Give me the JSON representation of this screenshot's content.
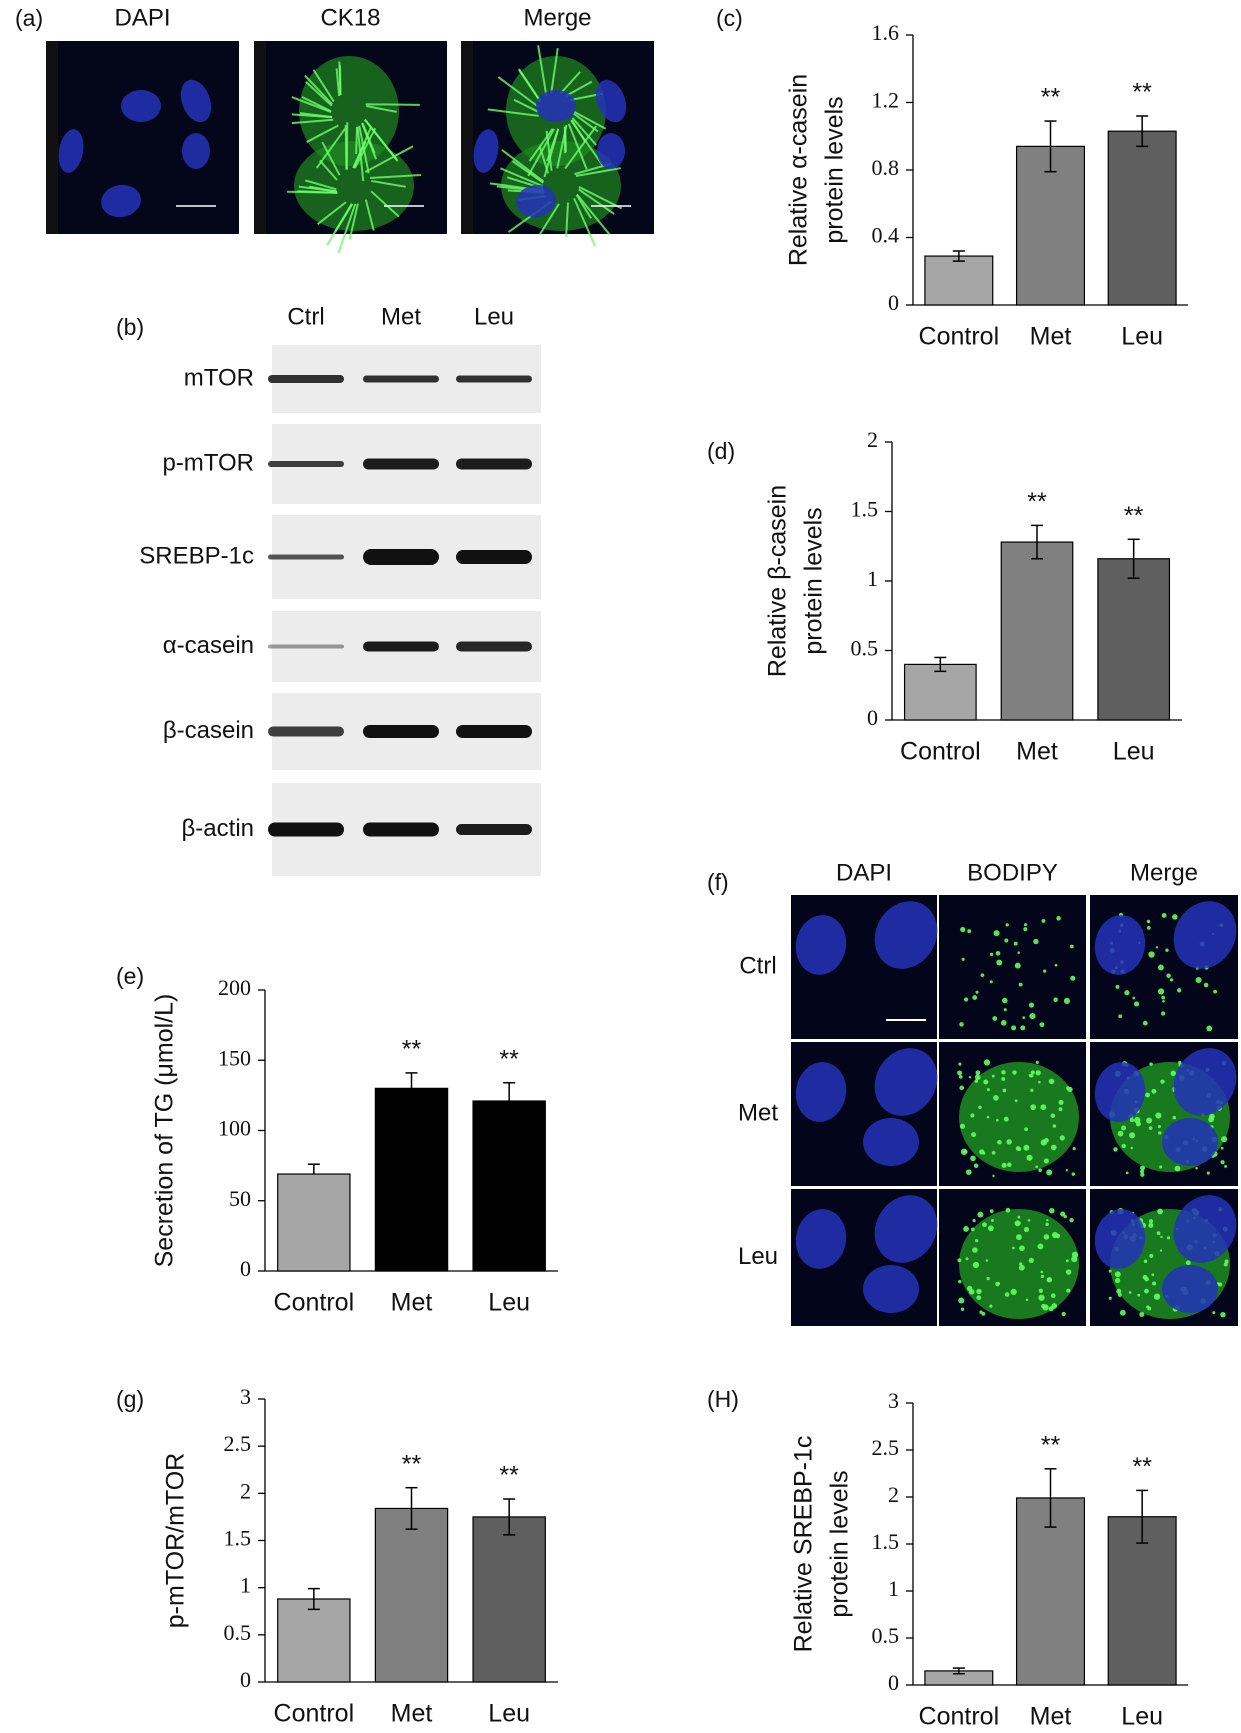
{
  "panel_labels": [
    "(a)",
    "(b)",
    "(c)",
    "(d)",
    "(e)",
    "(f)",
    "(g)",
    "(H)"
  ],
  "micrographs_a": {
    "columns": [
      "DAPI",
      "CK18",
      "Merge"
    ]
  },
  "blot": {
    "lanes": [
      "Ctrl",
      "Met",
      "Leu"
    ],
    "proteins": [
      "mTOR",
      "p-mTOR",
      "SREBP-1c",
      "α-casein",
      "β-casein",
      "β-actin"
    ]
  },
  "micrographs_f": {
    "columns": [
      "DAPI",
      "BODIPY",
      "Merge"
    ],
    "rows": [
      "Ctrl",
      "Met",
      "Leu"
    ]
  },
  "chart_data": [
    {
      "type": "bar",
      "ylabel": [
        "Relative α-casein",
        "protein levels"
      ],
      "categories": [
        "Control",
        "Met",
        "Leu"
      ],
      "values": [
        0.29,
        0.94,
        1.03
      ],
      "errors": [
        0.03,
        0.15,
        0.09
      ],
      "error_bars": "both",
      "annotations": [
        null,
        "**",
        "**"
      ],
      "colors": [
        "#a6a6a6",
        "#808080",
        "#5f5f5f"
      ],
      "ylim": [
        0,
        1.6
      ],
      "yticks": [
        0,
        0.4,
        0.8,
        1.2,
        1.6
      ]
    },
    {
      "type": "bar",
      "ylabel": [
        "Relative β-casein",
        "protein levels"
      ],
      "categories": [
        "Control",
        "Met",
        "Leu"
      ],
      "values": [
        0.4,
        1.28,
        1.16
      ],
      "errors": [
        0.05,
        0.12,
        0.14
      ],
      "error_bars": "both",
      "annotations": [
        null,
        "**",
        "**"
      ],
      "colors": [
        "#a6a6a6",
        "#808080",
        "#5f5f5f"
      ],
      "ylim": [
        0,
        2
      ],
      "yticks": [
        0,
        0.5,
        1,
        1.5,
        2
      ]
    },
    {
      "type": "bar",
      "ylabel": [
        "Secretion of  TG  (μmol/L)"
      ],
      "categories": [
        "Control",
        "Met",
        "Leu"
      ],
      "values": [
        69,
        130,
        121
      ],
      "errors": [
        7,
        11,
        13
      ],
      "error_bars": "upper",
      "annotations": [
        null,
        "**",
        "**"
      ],
      "colors": [
        "#a6a6a6",
        "#000000",
        "#000000"
      ],
      "ylim": [
        0,
        200
      ],
      "yticks": [
        0,
        50,
        100,
        150,
        200
      ]
    },
    {
      "type": "bar",
      "ylabel": [
        "p-mTOR/mTOR"
      ],
      "categories": [
        "Control",
        "Met",
        "Leu"
      ],
      "values": [
        0.88,
        1.84,
        1.75
      ],
      "errors": [
        0.11,
        0.22,
        0.19
      ],
      "error_bars": "both",
      "annotations": [
        null,
        "**",
        "**"
      ],
      "colors": [
        "#a6a6a6",
        "#808080",
        "#5f5f5f"
      ],
      "ylim": [
        0,
        3
      ],
      "yticks": [
        0,
        0.5,
        1,
        1.5,
        2,
        2.5,
        3
      ]
    },
    {
      "type": "bar",
      "ylabel": [
        "Relative SREBP-1c",
        "protein levels"
      ],
      "categories": [
        "Control",
        "Met",
        "Leu"
      ],
      "values": [
        0.15,
        1.99,
        1.79
      ],
      "errors": [
        0.03,
        0.31,
        0.28
      ],
      "error_bars": "both",
      "annotations": [
        null,
        "**",
        "**"
      ],
      "colors": [
        "#a6a6a6",
        "#808080",
        "#5f5f5f"
      ],
      "ylim": [
        0,
        3
      ],
      "yticks": [
        0,
        0.5,
        1,
        1.5,
        2,
        2.5,
        3
      ]
    }
  ]
}
